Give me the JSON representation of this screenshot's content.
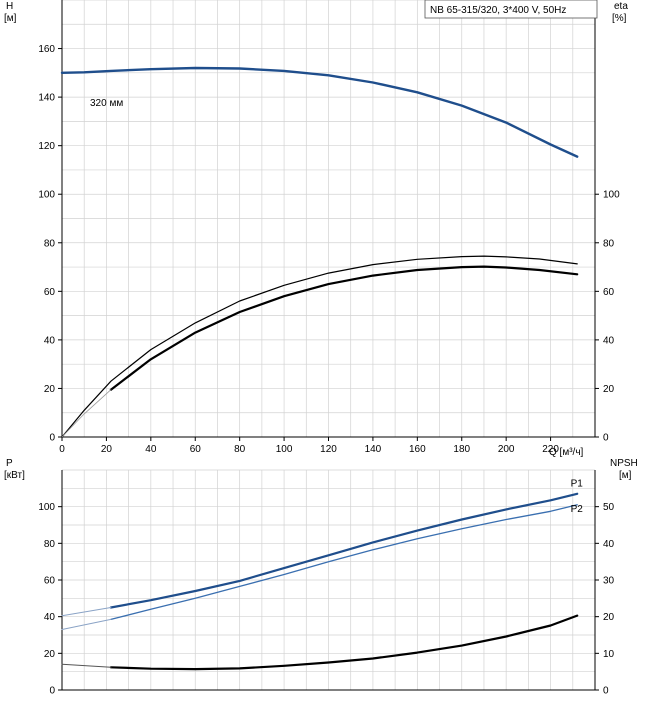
{
  "chart_data": [
    {
      "type": "line",
      "title": "NB 65-315/320, 3*400 V, 50Hz",
      "x_label": "Q [м³/ч]",
      "y_label_left": "H",
      "y_unit_left": "[м]",
      "y_label_right": "eta",
      "y_unit_right": "[%]",
      "xlim": [
        0,
        240
      ],
      "ylim_left": [
        0,
        180
      ],
      "ylim_right": [
        0,
        180
      ],
      "x_ticks": [
        0,
        20,
        40,
        60,
        80,
        100,
        120,
        140,
        160,
        180,
        200,
        220
      ],
      "y_ticks_left": [
        0,
        20,
        40,
        60,
        80,
        100,
        120,
        140,
        160
      ],
      "y_ticks_right": [
        0,
        20,
        40,
        60,
        80,
        100
      ],
      "grid": true,
      "curve_label": "320 мм",
      "series": [
        {
          "name": "H 320 мм",
          "axis": "left",
          "color": "#1f4e8c",
          "width": 2.4,
          "points": [
            [
              0,
              150
            ],
            [
              10,
              150.2
            ],
            [
              22,
              150.8
            ],
            [
              40,
              151.5
            ],
            [
              60,
              152
            ],
            [
              80,
              151.8
            ],
            [
              100,
              150.8
            ],
            [
              120,
              149
            ],
            [
              140,
              146
            ],
            [
              160,
              142
            ],
            [
              180,
              136.5
            ],
            [
              200,
              129.5
            ],
            [
              220,
              120.5
            ],
            [
              232,
              115.5
            ]
          ]
        },
        {
          "axis": "left",
          "color": "#000000",
          "width": 1.2,
          "points": [
            [
              0,
              0
            ],
            [
              10,
              11
            ],
            [
              22,
              23
            ],
            [
              40,
              36
            ],
            [
              60,
              47
            ],
            [
              80,
              56
            ],
            [
              100,
              62.5
            ],
            [
              120,
              67.5
            ],
            [
              140,
              71
            ],
            [
              160,
              73.2
            ],
            [
              180,
              74.3
            ],
            [
              190,
              74.5
            ],
            [
              200,
              74.2
            ],
            [
              215,
              73.3
            ],
            [
              232,
              71.3
            ]
          ]
        },
        {
          "axis": "left",
          "color": "#000000",
          "width": 2.2,
          "points": [
            [
              22,
              19.5
            ],
            [
              40,
              32
            ],
            [
              60,
              43
            ],
            [
              80,
              51.5
            ],
            [
              100,
              58
            ],
            [
              120,
              63
            ],
            [
              140,
              66.5
            ],
            [
              160,
              68.8
            ],
            [
              180,
              70
            ],
            [
              190,
              70.2
            ],
            [
              200,
              69.8
            ],
            [
              215,
              68.8
            ],
            [
              232,
              67
            ]
          ]
        },
        {
          "axis": "left",
          "color": "#9a9a9a",
          "width": 0.8,
          "points": [
            [
              0,
              0
            ],
            [
              10,
              9.5
            ],
            [
              22,
              19.5
            ]
          ]
        }
      ]
    },
    {
      "type": "line",
      "x_label": "",
      "y_label_left": "P",
      "y_unit_left": "[кВт]",
      "y_label_right": "NPSH",
      "y_unit_right": "[м]",
      "xlim": [
        0,
        240
      ],
      "ylim_left": [
        0,
        120
      ],
      "ylim_right": [
        0,
        60
      ],
      "y_ticks_left": [
        0,
        20,
        40,
        60,
        80,
        100
      ],
      "y_ticks_right": [
        0,
        10,
        20,
        30,
        40,
        50
      ],
      "grid": true,
      "series": [
        {
          "name": "P1",
          "axis": "left",
          "color": "#1f4e8c",
          "width": 2.2,
          "points": [
            [
              22,
              45
            ],
            [
              40,
              49
            ],
            [
              60,
              54
            ],
            [
              80,
              59.5
            ],
            [
              100,
              66.5
            ],
            [
              120,
              73.5
            ],
            [
              140,
              80.5
            ],
            [
              160,
              87
            ],
            [
              180,
              93
            ],
            [
              200,
              98.5
            ],
            [
              220,
              103.5
            ],
            [
              232,
              107
            ]
          ]
        },
        {
          "name": "P2",
          "axis": "left",
          "color": "#3a6fb0",
          "width": 1.3,
          "points": [
            [
              22,
              38.5
            ],
            [
              40,
              44
            ],
            [
              60,
              50
            ],
            [
              80,
              56.5
            ],
            [
              100,
              63
            ],
            [
              120,
              70
            ],
            [
              140,
              76.5
            ],
            [
              160,
              82.5
            ],
            [
              180,
              88
            ],
            [
              200,
              93
            ],
            [
              220,
              97.5
            ],
            [
              232,
              101
            ]
          ]
        },
        {
          "axis": "left",
          "color": "#8aa3c6",
          "width": 1.0,
          "points": [
            [
              0,
              40.5
            ],
            [
              22,
              45
            ]
          ]
        },
        {
          "axis": "left",
          "color": "#8aa3c6",
          "width": 1.0,
          "points": [
            [
              0,
              33
            ],
            [
              22,
              38.5
            ]
          ]
        },
        {
          "axis": "right",
          "color": "#000000",
          "width": 2.2,
          "points": [
            [
              22,
              6.2
            ],
            [
              40,
              5.8
            ],
            [
              60,
              5.7
            ],
            [
              80,
              5.9
            ],
            [
              100,
              6.6
            ],
            [
              120,
              7.5
            ],
            [
              140,
              8.6
            ],
            [
              160,
              10.2
            ],
            [
              180,
              12.1
            ],
            [
              200,
              14.6
            ],
            [
              220,
              17.6
            ],
            [
              232,
              20.3
            ]
          ]
        },
        {
          "axis": "right",
          "color": "#555555",
          "width": 1.0,
          "points": [
            [
              0,
              7
            ],
            [
              22,
              6.2
            ]
          ]
        }
      ],
      "series_labels": [
        {
          "text": "P1",
          "color": "#1f4e8c",
          "x": 229,
          "y": 111
        },
        {
          "text": "P2",
          "color": "#3a6fb0",
          "x": 229,
          "y": 97
        }
      ]
    }
  ]
}
